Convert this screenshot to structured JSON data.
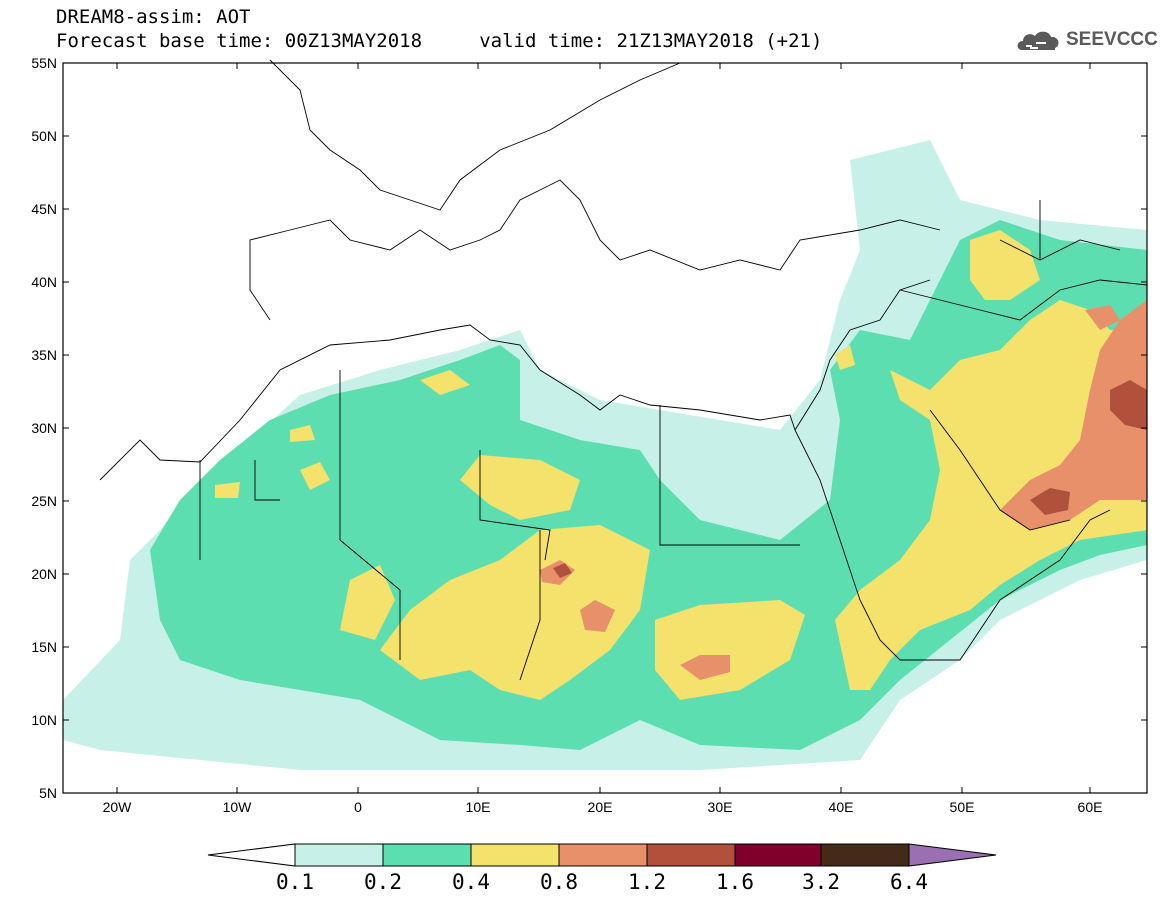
{
  "header": {
    "line1": "DREAM8-assim: AOT",
    "line2": "Forecast base time: 00Z13MAY2018     valid time: 21Z13MAY2018 (+21)"
  },
  "logo": {
    "text": "SEEVCCC",
    "icon": "cloud-icon"
  },
  "map": {
    "region": "North Africa, Europe and Middle East",
    "lon_range": [
      -25,
      65
    ],
    "lat_range": [
      5,
      55
    ],
    "y_ticks": [
      "55N",
      "50N",
      "45N",
      "40N",
      "35N",
      "30N",
      "25N",
      "20N",
      "15N",
      "10N",
      "5N"
    ],
    "x_ticks": [
      "20W",
      "10W",
      "0",
      "10E",
      "20E",
      "30E",
      "40E",
      "50E",
      "60E"
    ]
  },
  "colorbar": {
    "labels": [
      "0.1",
      "0.2",
      "0.4",
      "0.8",
      "1.2",
      "1.6",
      "3.2",
      "6.4"
    ],
    "colors": {
      "lt01": "#ffffff",
      "c01_02": "#c7f1e8",
      "c02_04": "#5ddeb0",
      "c04_08": "#f5e26d",
      "c08_12": "#e8906a",
      "c12_16": "#b0513b",
      "c16_32": "#80002c",
      "c32_64": "#452a18",
      "gt64": "#9a70b3"
    }
  }
}
